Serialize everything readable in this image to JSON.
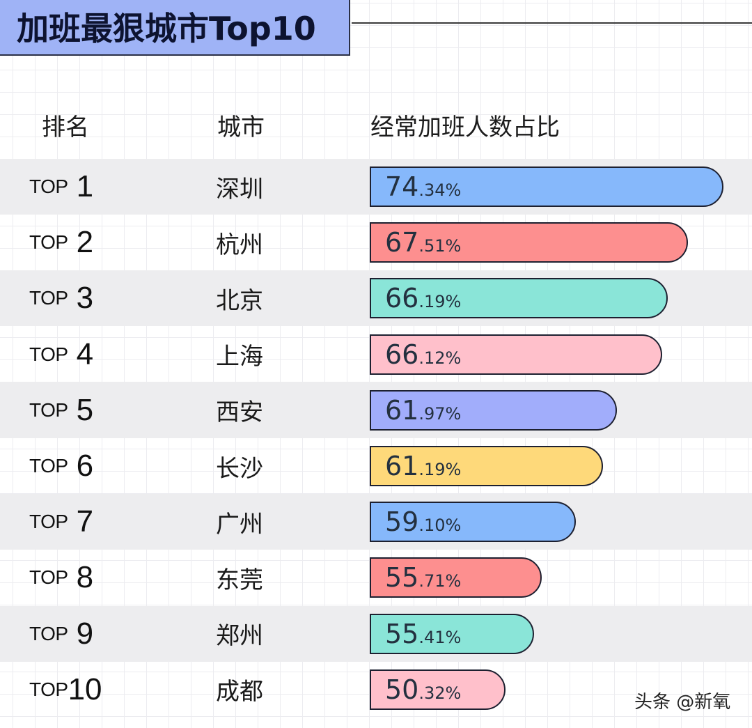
{
  "title": "加班最狠城市Top10",
  "headers": {
    "rank": "排名",
    "city": "城市",
    "share": "经常加班人数占比"
  },
  "rows": [
    {
      "top": "TOP",
      "num": "1",
      "city": "深圳",
      "int": "74",
      "dec": ".34%",
      "value": 74.34,
      "color": "#86b8fb",
      "end": 1039
    },
    {
      "top": "TOP",
      "num": "2",
      "city": "杭州",
      "int": "67",
      "dec": ".51%",
      "value": 67.51,
      "color": "#fd8f8f",
      "end": 988
    },
    {
      "top": "TOP",
      "num": "3",
      "city": "北京",
      "int": "66",
      "dec": ".19%",
      "value": 66.19,
      "color": "#8ae5d8",
      "end": 959
    },
    {
      "top": "TOP",
      "num": "4",
      "city": "上海",
      "int": "66",
      "dec": ".12%",
      "value": 66.12,
      "color": "#ffc0cb",
      "end": 951
    },
    {
      "top": "TOP",
      "num": "5",
      "city": "西安",
      "int": "61",
      "dec": ".97%",
      "value": 61.97,
      "color": "#a1adfb",
      "end": 886
    },
    {
      "top": "TOP",
      "num": "6",
      "city": "长沙",
      "int": "61",
      "dec": ".19%",
      "value": 61.19,
      "color": "#fed97a",
      "end": 866
    },
    {
      "top": "TOP",
      "num": "7",
      "city": "广州",
      "int": "59",
      "dec": ".10%",
      "value": 59.1,
      "color": "#86b8fb",
      "end": 827
    },
    {
      "top": "TOP",
      "num": "8",
      "city": "东莞",
      "int": "55",
      "dec": ".71%",
      "value": 55.71,
      "color": "#fd8f8f",
      "end": 778
    },
    {
      "top": "TOP",
      "num": "9",
      "city": "郑州",
      "int": "55",
      "dec": ".41%",
      "value": 55.41,
      "color": "#8ae5d8",
      "end": 767
    },
    {
      "top": "TOP",
      "num": "10",
      "city": "成都",
      "int": "50",
      "dec": ".32%",
      "value": 50.32,
      "color": "#ffc0cb",
      "end": 726
    }
  ],
  "watermark": "头条 @新氧",
  "chart_data": {
    "type": "bar",
    "orientation": "horizontal",
    "title": "加班最狠城市Top10",
    "xlabel": "经常加班人数占比",
    "ylabel": "城市",
    "categories": [
      "深圳",
      "杭州",
      "北京",
      "上海",
      "西安",
      "长沙",
      "广州",
      "东莞",
      "郑州",
      "成都"
    ],
    "ranks": [
      "TOP 1",
      "TOP 2",
      "TOP 3",
      "TOP 4",
      "TOP 5",
      "TOP 6",
      "TOP 7",
      "TOP 8",
      "TOP 9",
      "TOP10"
    ],
    "values": [
      74.34,
      67.51,
      66.19,
      66.12,
      61.97,
      61.19,
      59.1,
      55.71,
      55.41,
      50.32
    ],
    "unit": "%",
    "data_labels": [
      "74.34%",
      "67.51%",
      "66.19%",
      "66.12%",
      "61.97%",
      "61.19%",
      "59.10%",
      "55.71%",
      "55.41%",
      "50.32%"
    ],
    "colors": [
      "#86b8fb",
      "#fd8f8f",
      "#8ae5d8",
      "#ffc0cb",
      "#a1adfb",
      "#fed97a",
      "#86b8fb",
      "#fd8f8f",
      "#8ae5d8",
      "#ffc0cb"
    ],
    "grid": true,
    "legend": "none"
  }
}
